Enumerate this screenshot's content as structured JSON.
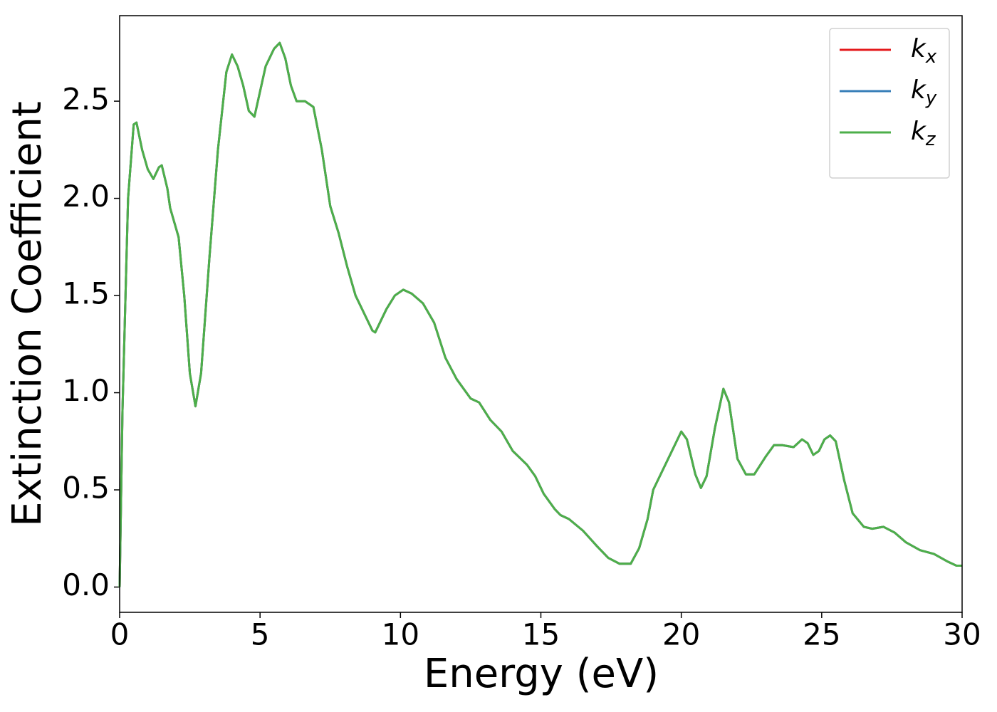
{
  "chart_data": {
    "type": "line",
    "xlabel": "Energy (eV)",
    "ylabel": "Extinction Coefficient",
    "xlim": [
      0,
      30
    ],
    "ylim": [
      -0.13,
      2.94
    ],
    "xticks": [
      0,
      5,
      10,
      15,
      20,
      25,
      30
    ],
    "yticks": [
      {
        "value": 0,
        "label": "0.0"
      },
      0.5,
      {
        "value": 1,
        "label": "1.0"
      },
      1.5,
      {
        "value": 2,
        "label": "2.0"
      },
      2.5
    ],
    "legend": "upper right",
    "x": [
      0,
      0.1,
      0.3,
      0.5,
      0.6,
      0.8,
      1.0,
      1.2,
      1.4,
      1.5,
      1.7,
      1.8,
      2.1,
      2.3,
      2.5,
      2.7,
      2.9,
      3.2,
      3.5,
      3.8,
      4.0,
      4.2,
      4.4,
      4.6,
      4.8,
      5.0,
      5.2,
      5.5,
      5.7,
      5.9,
      6.1,
      6.3,
      6.6,
      6.9,
      7.2,
      7.5,
      7.8,
      8.1,
      8.4,
      8.7,
      9.0,
      9.1,
      9.5,
      9.8,
      10.1,
      10.4,
      10.8,
      11.2,
      11.6,
      12.0,
      12.5,
      12.8,
      13.2,
      13.6,
      14.0,
      14.5,
      14.8,
      15.1,
      15.5,
      15.7,
      16.0,
      16.5,
      17.0,
      17.4,
      17.8,
      18.2,
      18.5,
      18.8,
      19.0,
      19.4,
      19.8,
      20.0,
      20.2,
      20.5,
      20.7,
      20.9,
      21.2,
      21.5,
      21.7,
      22.0,
      22.3,
      22.6,
      23.0,
      23.3,
      23.6,
      24.0,
      24.3,
      24.5,
      24.7,
      24.9,
      25.1,
      25.3,
      25.5,
      25.8,
      26.1,
      26.5,
      26.8,
      27.2,
      27.6,
      28.0,
      28.5,
      29.0,
      29.5,
      29.8,
      30.0
    ],
    "series": [
      {
        "name": "kx",
        "color": "#e41a1c",
        "values": [
          0,
          0.9,
          2.0,
          2.38,
          2.39,
          2.25,
          2.15,
          2.1,
          2.16,
          2.17,
          2.05,
          1.95,
          1.8,
          1.5,
          1.1,
          0.93,
          1.1,
          1.7,
          2.25,
          2.65,
          2.74,
          2.68,
          2.58,
          2.45,
          2.42,
          2.55,
          2.68,
          2.77,
          2.8,
          2.72,
          2.58,
          2.5,
          2.5,
          2.47,
          2.25,
          1.96,
          1.82,
          1.65,
          1.5,
          1.41,
          1.32,
          1.31,
          1.43,
          1.5,
          1.53,
          1.51,
          1.46,
          1.36,
          1.18,
          1.07,
          0.97,
          0.95,
          0.86,
          0.8,
          0.7,
          0.63,
          0.57,
          0.48,
          0.4,
          0.37,
          0.35,
          0.29,
          0.21,
          0.15,
          0.12,
          0.12,
          0.2,
          0.35,
          0.5,
          0.62,
          0.74,
          0.8,
          0.76,
          0.58,
          0.51,
          0.57,
          0.82,
          1.02,
          0.95,
          0.66,
          0.58,
          0.58,
          0.67,
          0.73,
          0.73,
          0.72,
          0.76,
          0.74,
          0.68,
          0.7,
          0.76,
          0.78,
          0.75,
          0.55,
          0.38,
          0.31,
          0.3,
          0.31,
          0.28,
          0.23,
          0.19,
          0.17,
          0.13,
          0.11,
          0.11
        ]
      },
      {
        "name": "ky",
        "color": "#377eb8",
        "values": [
          0,
          0.9,
          2.0,
          2.38,
          2.39,
          2.25,
          2.15,
          2.1,
          2.16,
          2.17,
          2.05,
          1.95,
          1.8,
          1.5,
          1.1,
          0.93,
          1.1,
          1.7,
          2.25,
          2.65,
          2.74,
          2.68,
          2.58,
          2.45,
          2.42,
          2.55,
          2.68,
          2.77,
          2.8,
          2.72,
          2.58,
          2.5,
          2.5,
          2.47,
          2.25,
          1.96,
          1.82,
          1.65,
          1.5,
          1.41,
          1.32,
          1.31,
          1.43,
          1.5,
          1.53,
          1.51,
          1.46,
          1.36,
          1.18,
          1.07,
          0.97,
          0.95,
          0.86,
          0.8,
          0.7,
          0.63,
          0.57,
          0.48,
          0.4,
          0.37,
          0.35,
          0.29,
          0.21,
          0.15,
          0.12,
          0.12,
          0.2,
          0.35,
          0.5,
          0.62,
          0.74,
          0.8,
          0.76,
          0.58,
          0.51,
          0.57,
          0.82,
          1.02,
          0.95,
          0.66,
          0.58,
          0.58,
          0.67,
          0.73,
          0.73,
          0.72,
          0.76,
          0.74,
          0.68,
          0.7,
          0.76,
          0.78,
          0.75,
          0.55,
          0.38,
          0.31,
          0.3,
          0.31,
          0.28,
          0.23,
          0.19,
          0.17,
          0.13,
          0.11,
          0.11
        ]
      },
      {
        "name": "kz",
        "color": "#4daf4a",
        "values": [
          0,
          0.9,
          2.0,
          2.38,
          2.39,
          2.25,
          2.15,
          2.1,
          2.16,
          2.17,
          2.05,
          1.95,
          1.8,
          1.5,
          1.1,
          0.93,
          1.1,
          1.7,
          2.25,
          2.65,
          2.74,
          2.68,
          2.58,
          2.45,
          2.42,
          2.55,
          2.68,
          2.77,
          2.8,
          2.72,
          2.58,
          2.5,
          2.5,
          2.47,
          2.25,
          1.96,
          1.82,
          1.65,
          1.5,
          1.41,
          1.32,
          1.31,
          1.43,
          1.5,
          1.53,
          1.51,
          1.46,
          1.36,
          1.18,
          1.07,
          0.97,
          0.95,
          0.86,
          0.8,
          0.7,
          0.63,
          0.57,
          0.48,
          0.4,
          0.37,
          0.35,
          0.29,
          0.21,
          0.15,
          0.12,
          0.12,
          0.2,
          0.35,
          0.5,
          0.62,
          0.74,
          0.8,
          0.76,
          0.58,
          0.51,
          0.57,
          0.82,
          1.02,
          0.95,
          0.66,
          0.58,
          0.58,
          0.67,
          0.73,
          0.73,
          0.72,
          0.76,
          0.74,
          0.68,
          0.7,
          0.76,
          0.78,
          0.75,
          0.55,
          0.38,
          0.31,
          0.3,
          0.31,
          0.28,
          0.23,
          0.19,
          0.17,
          0.13,
          0.11,
          0.11
        ]
      }
    ]
  }
}
